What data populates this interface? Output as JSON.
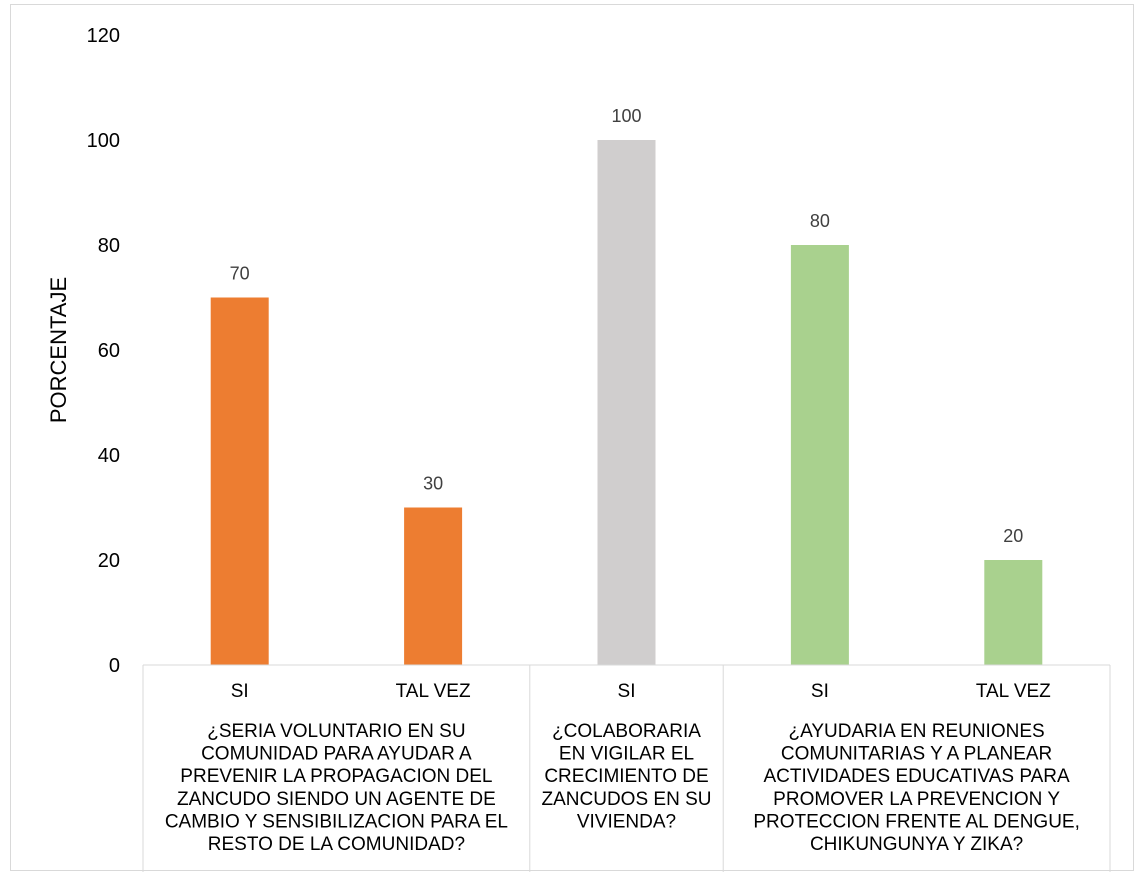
{
  "chart_data": {
    "type": "bar",
    "ylabel": "PORCENTAJE",
    "xlabel": "",
    "title": "",
    "ylim": [
      0,
      120
    ],
    "yticks": [
      0,
      20,
      40,
      60,
      80,
      100,
      120
    ],
    "grid": false,
    "legend": "none",
    "groups": [
      {
        "label_lines": [
          "¿SERIA VOLUNTARIO EN SU",
          "COMUNIDAD PARA AYUDAR A",
          "PREVENIR LA PROPAGACION DEL",
          "ZANCUDO SIENDO UN AGENTE DE",
          "CAMBIO Y SENSIBILIZACION PARA EL",
          "RESTO DE LA COMUNIDAD?"
        ],
        "color": "#ED7D31",
        "bars": [
          {
            "category": "SI",
            "value": 70
          },
          {
            "category": "TAL VEZ",
            "value": 30
          }
        ]
      },
      {
        "label_lines": [
          "¿COLABORARIA",
          "EN VIGILAR EL",
          "CRECIMIENTO DE",
          "ZANCUDOS EN SU",
          "VIVIENDA?"
        ],
        "color": "#D0CECE",
        "bars": [
          {
            "category": "SI",
            "value": 100
          }
        ]
      },
      {
        "label_lines": [
          "¿AYUDARIA EN REUNIONES",
          "COMUNITARIAS Y A PLANEAR",
          "ACTIVIDADES EDUCATIVAS PARA",
          "PROMOVER LA PREVENCION Y",
          "PROTECCION FRENTE AL DENGUE,",
          "CHIKUNGUNYA Y ZIKA?"
        ],
        "color": "#A9D18E",
        "bars": [
          {
            "category": "SI",
            "value": 80
          },
          {
            "category": "TAL VEZ",
            "value": 20
          }
        ]
      }
    ]
  }
}
